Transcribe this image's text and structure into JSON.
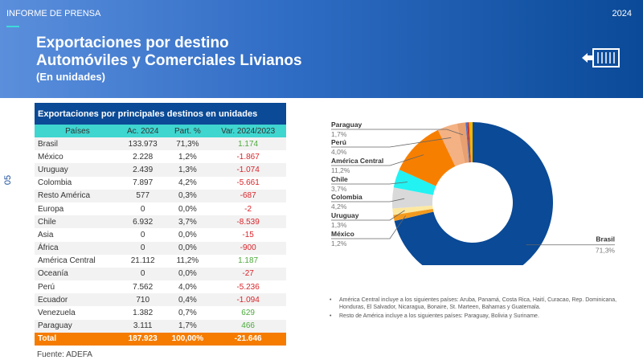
{
  "header": {
    "kicker": "INFORME DE PRENSA",
    "year": "2024",
    "title_line1": "Exportaciones por destino",
    "title_line2": "Automóviles y Comerciales Livianos",
    "subtitle": "(En unidades)",
    "icon": "container-export-icon"
  },
  "page_number": "05",
  "table": {
    "title": "Exportaciones por principales destinos en unidades",
    "columns": [
      "Países",
      "Ac. 2024",
      "Part. %",
      "Var. 2024/2023"
    ],
    "rows": [
      [
        "Brasil",
        "133.973",
        "71,3%",
        "1.174"
      ],
      [
        "México",
        "2.228",
        "1,2%",
        "-1.867"
      ],
      [
        "Uruguay",
        "2.439",
        "1,3%",
        "-1.074"
      ],
      [
        "Colombia",
        "7.897",
        "4,2%",
        "-5.661"
      ],
      [
        "Resto América",
        "577",
        "0,3%",
        "-687"
      ],
      [
        "Europa",
        "0",
        "0,0%",
        "-2"
      ],
      [
        "Chile",
        "6.932",
        "3,7%",
        "-8.539"
      ],
      [
        "Asia",
        "0",
        "0,0%",
        "-15"
      ],
      [
        "África",
        "0",
        "0,0%",
        "-900"
      ],
      [
        "América Central",
        "21.112",
        "11,2%",
        "1.187"
      ],
      [
        "Oceanía",
        "0",
        "0,0%",
        "-27"
      ],
      [
        "Perú",
        "7.562",
        "4,0%",
        "-5.236"
      ],
      [
        "Ecuador",
        "710",
        "0,4%",
        "-1.094"
      ],
      [
        "Venezuela",
        "1.382",
        "0,7%",
        "629"
      ],
      [
        "Paraguay",
        "3.111",
        "1,7%",
        "466"
      ]
    ],
    "total": [
      "Total",
      "187.923",
      "100,00%",
      "-21.646"
    ]
  },
  "source": "Fuente: ADEFA",
  "chart_data": {
    "type": "pie",
    "donut": true,
    "slices": [
      {
        "name": "Brasil",
        "value": 71.3,
        "label": "71,3%",
        "color": "#0a4a96",
        "labeled": true
      },
      {
        "name": "México",
        "value": 1.2,
        "label": "1,2%",
        "color": "#f39a1e",
        "labeled": true
      },
      {
        "name": "Uruguay",
        "value": 1.3,
        "label": "1,3%",
        "color": "#fde8a0",
        "labeled": true
      },
      {
        "name": "Colombia",
        "value": 4.2,
        "label": "4,2%",
        "color": "#d9d9d9",
        "labeled": true
      },
      {
        "name": "Chile",
        "value": 3.7,
        "label": "3,7%",
        "color": "#22f2f2",
        "labeled": true
      },
      {
        "name": "América Central",
        "value": 11.2,
        "label": "11,2%",
        "color": "#f77f00",
        "labeled": true
      },
      {
        "name": "Perú",
        "value": 4.0,
        "label": "4,0%",
        "color": "#f4b183",
        "labeled": true
      },
      {
        "name": "Paraguay",
        "value": 1.7,
        "label": "1,7%",
        "color": "#e8a070",
        "labeled": true
      },
      {
        "name": "Resto América",
        "value": 0.3,
        "color": "#4f6fc4",
        "labeled": false
      },
      {
        "name": "Ecuador",
        "value": 0.4,
        "color": "#c0392b",
        "labeled": false
      },
      {
        "name": "Venezuela",
        "value": 0.7,
        "color": "#f2b400",
        "labeled": false
      }
    ]
  },
  "notes": [
    "América Central incluye a los siguientes países: Aruba, Panamá, Costa Rica, Haití, Curacao, Rep. Dominicana, Honduras, El Salvador, Nicaragua,  Bonaire, St. Marteen, Bahamas y Guatemala.",
    "Resto de América incluye a los siguientes países: Paraguay, Bolivia y Suriname."
  ]
}
